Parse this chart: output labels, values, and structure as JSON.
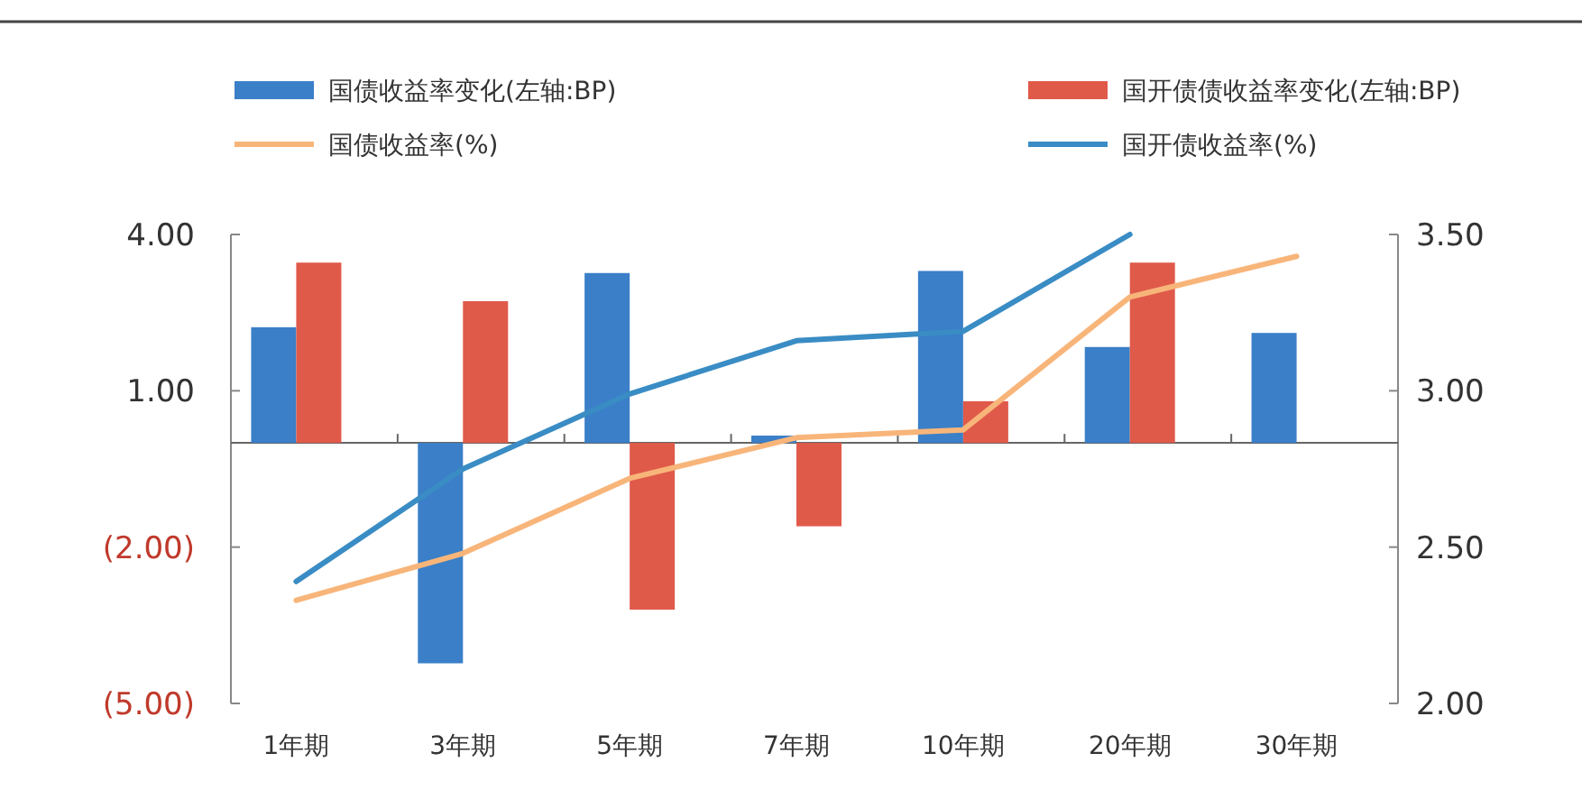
{
  "chart_data": {
    "type": "bar",
    "categories": [
      "1年期",
      "3年期",
      "5年期",
      "7年期",
      "10年期",
      "20年期",
      "30年期"
    ],
    "series": [
      {
        "name": "国债收益率变化(左轴:BP)",
        "color": "#3a7fc8",
        "values": [
          2.22,
          -4.23,
          3.26,
          0.14,
          3.3,
          1.84,
          2.11
        ]
      },
      {
        "name": "国开债债收益率变化(左轴:BP)",
        "color": "#e05a4a",
        "values": [
          3.46,
          2.72,
          -3.2,
          -1.6,
          0.8,
          3.46,
          null
        ]
      },
      {
        "name": "国债收益率(%)",
        "type": "line",
        "axis": "y2",
        "color": "#f8b57a",
        "values": [
          2.33,
          2.48,
          2.72,
          2.85,
          2.875,
          3.3,
          3.43
        ]
      },
      {
        "name": "国开债收益率(%)",
        "type": "line",
        "axis": "y2",
        "color": "#3a8cc4",
        "values": [
          2.39,
          2.75,
          2.99,
          3.16,
          3.19,
          3.5,
          null
        ]
      }
    ],
    "ylim": [
      -5,
      4
    ],
    "yticks": [
      {
        "value": -5,
        "label": "(5.00)"
      },
      {
        "value": -2,
        "label": "(2.00)"
      },
      {
        "value": 1,
        "label": "1.00"
      },
      {
        "value": 4,
        "label": "4.00"
      }
    ],
    "y2lim": [
      2,
      3.5
    ],
    "y2ticks": [
      {
        "value": 2,
        "label": "2.00"
      },
      {
        "value": 2.5,
        "label": "2.50"
      },
      {
        "value": 3,
        "label": "3.00"
      },
      {
        "value": 3.5,
        "label": "3.50"
      }
    ],
    "legend": "top",
    "grid": false
  }
}
